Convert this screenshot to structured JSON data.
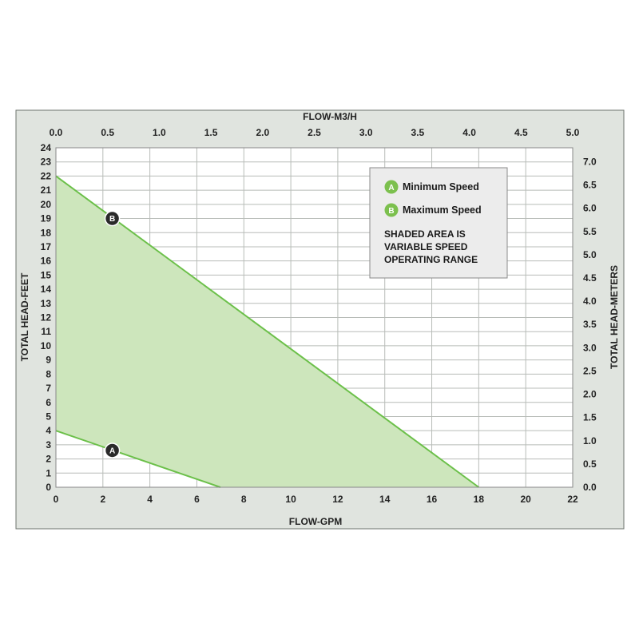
{
  "colors": {
    "frame_bg": "#e0e4df",
    "plot_bg": "#ffffff",
    "grid": "#b8bcb8",
    "curve": "#6cc04a",
    "shade": "#cde6bc",
    "marker_fill": "#2a2a2a",
    "legend_badge": "#7cc04e"
  },
  "chart_data": {
    "type": "area",
    "xlabel": "FLOW-GPM",
    "x2label": "FLOW-M3/H",
    "ylabel": "TOTAL HEAD-FEET",
    "y2label": "TOTAL HEAD-METERS",
    "xlim": [
      0,
      22
    ],
    "ylim": [
      0,
      24
    ],
    "x2lim": [
      0,
      5
    ],
    "y2lim": [
      0,
      7.3
    ],
    "x_ticks": [
      "0",
      "2",
      "4",
      "6",
      "8",
      "10",
      "12",
      "14",
      "16",
      "18",
      "20",
      "22"
    ],
    "x2_ticks": [
      "0.0",
      "0.5",
      "1.0",
      "1.5",
      "2.0",
      "2.5",
      "3.0",
      "3.5",
      "4.0",
      "4.5",
      "5.0"
    ],
    "y_ticks": [
      "0",
      "1",
      "2",
      "3",
      "4",
      "5",
      "6",
      "7",
      "8",
      "9",
      "10",
      "11",
      "12",
      "13",
      "14",
      "15",
      "16",
      "17",
      "18",
      "19",
      "20",
      "21",
      "22",
      "23",
      "24"
    ],
    "y2_ticks": [
      "0.0",
      "0.5",
      "1.0",
      "1.5",
      "2.0",
      "2.5",
      "3.0",
      "3.5",
      "4.0",
      "4.5",
      "5.0",
      "5.5",
      "6.0",
      "6.5",
      "7.0"
    ],
    "grid": true,
    "series": [
      {
        "name": "Minimum Speed",
        "marker": "A",
        "x": [
          0,
          7
        ],
        "y": [
          4,
          0
        ],
        "marker_at": [
          2.4,
          2.6
        ]
      },
      {
        "name": "Maximum Speed",
        "marker": "B",
        "x": [
          0,
          18
        ],
        "y": [
          22,
          0
        ],
        "marker_at": [
          2.4,
          19
        ]
      }
    ],
    "legend": {
      "position": "top-right",
      "items": [
        {
          "badge": "A",
          "label": "Minimum Speed"
        },
        {
          "badge": "B",
          "label": "Maximum Speed"
        }
      ],
      "note": [
        "SHADED AREA IS",
        "VARIABLE SPEED",
        "OPERATING RANGE"
      ]
    }
  }
}
